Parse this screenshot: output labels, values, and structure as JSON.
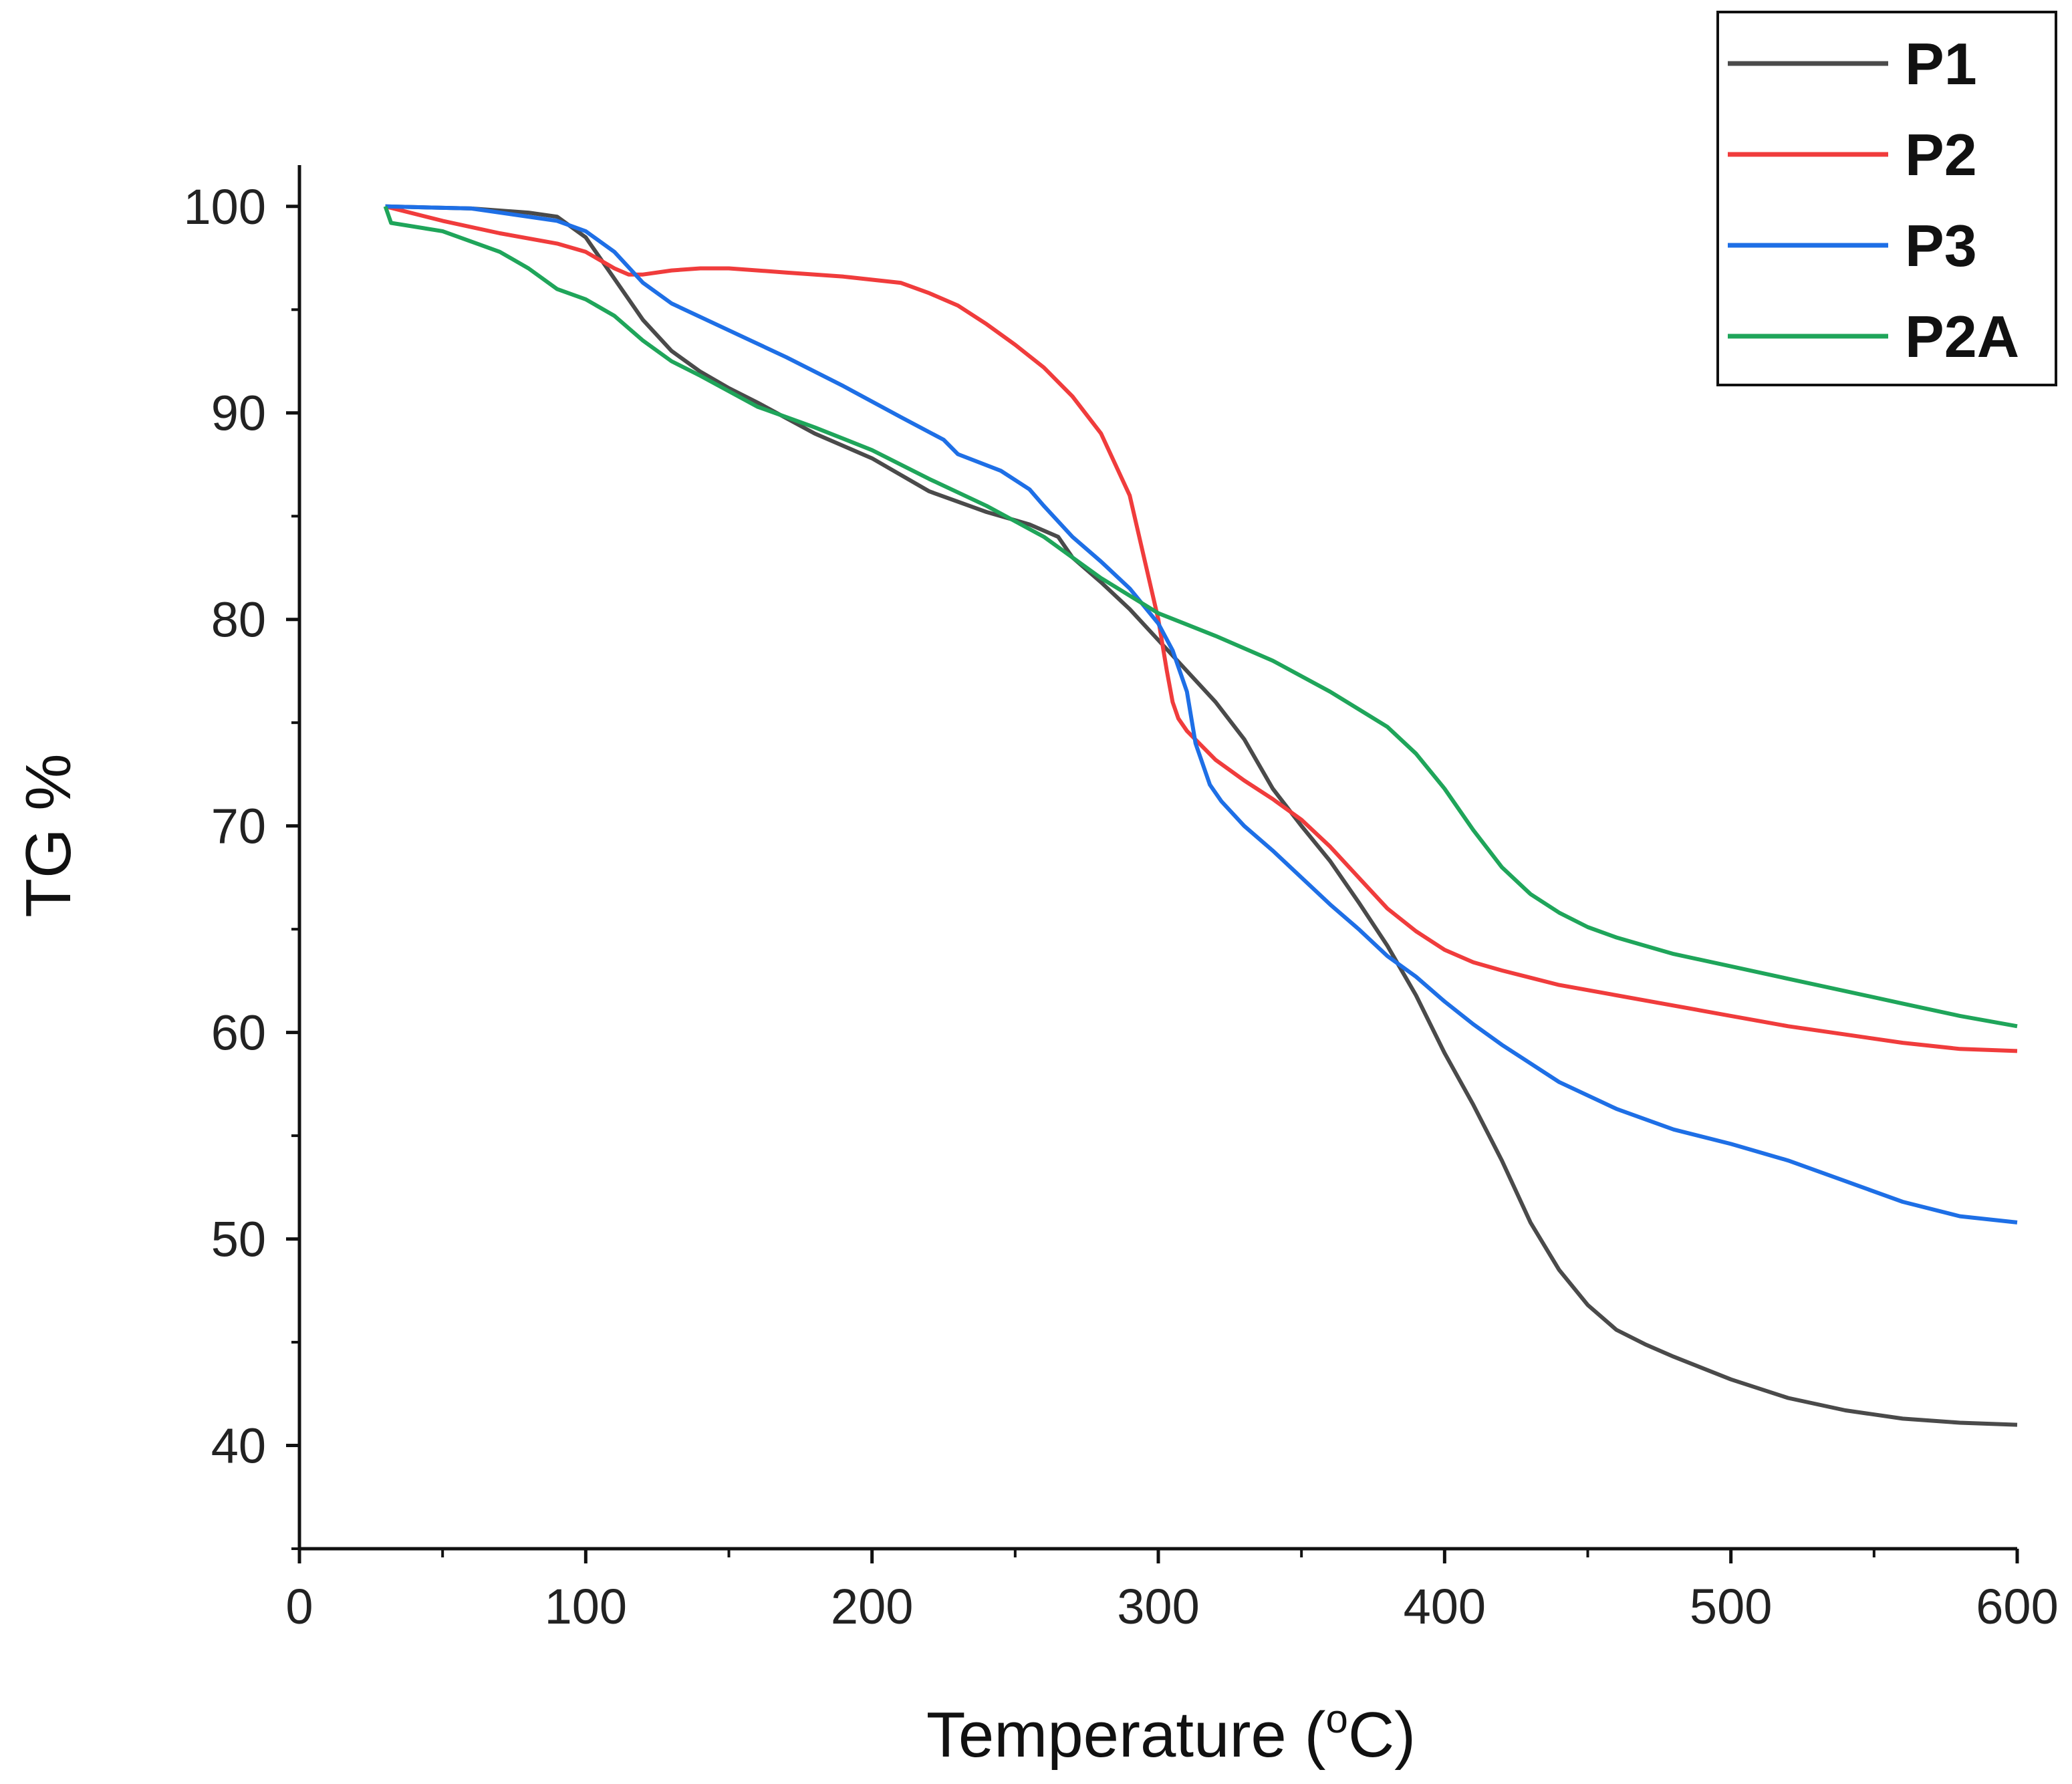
{
  "chart_data": {
    "type": "line",
    "title": "",
    "xlabel": "Temperature (",
    "xlabel_sup": "o",
    "xlabel_tail": "C)",
    "ylabel": "TG %",
    "xlim": [
      0,
      600
    ],
    "ylim": [
      35,
      102
    ],
    "xticks": [
      0,
      100,
      200,
      300,
      400,
      500,
      600
    ],
    "yticks": [
      40,
      50,
      60,
      70,
      80,
      90,
      100
    ],
    "xtick_labels": [
      "0",
      "100",
      "200",
      "300",
      "400",
      "500",
      "600"
    ],
    "ytick_labels": [
      "40",
      "50",
      "60",
      "70",
      "80",
      "90",
      "100"
    ],
    "grid": false,
    "legend_position": "top-right",
    "series": [
      {
        "name": "P1",
        "color": "#4a4a4a",
        "x": [
          30,
          60,
          80,
          90,
          100,
          110,
          120,
          130,
          140,
          150,
          160,
          180,
          200,
          220,
          240,
          255,
          265,
          270,
          280,
          290,
          300,
          310,
          320,
          330,
          340,
          350,
          360,
          370,
          380,
          390,
          400,
          410,
          420,
          430,
          440,
          450,
          460,
          470,
          480,
          500,
          520,
          540,
          560,
          580,
          600
        ],
        "y": [
          100,
          99.9,
          99.7,
          99.5,
          98.5,
          96.5,
          94.5,
          93,
          92,
          91.2,
          90.5,
          89,
          87.8,
          86.2,
          85.2,
          84.6,
          84.0,
          83.0,
          81.8,
          80.5,
          79.0,
          77.5,
          76.0,
          74.2,
          71.8,
          70.0,
          68.3,
          66.3,
          64.2,
          61.8,
          59.0,
          56.5,
          53.8,
          50.8,
          48.5,
          46.8,
          45.6,
          44.9,
          44.3,
          43.2,
          42.3,
          41.7,
          41.3,
          41.1,
          41.0
        ]
      },
      {
        "name": "P2",
        "color": "#f03c3c",
        "x": [
          30,
          50,
          70,
          90,
          100,
          110,
          115,
          120,
          130,
          140,
          150,
          170,
          190,
          210,
          220,
          230,
          240,
          250,
          260,
          270,
          280,
          290,
          295,
          300,
          303,
          305,
          307,
          310,
          320,
          330,
          340,
          350,
          360,
          370,
          380,
          390,
          400,
          410,
          420,
          440,
          460,
          480,
          500,
          520,
          540,
          560,
          580,
          600
        ],
        "y": [
          100,
          99.3,
          98.7,
          98.2,
          97.8,
          97.0,
          96.7,
          96.7,
          96.9,
          97.0,
          97.0,
          96.8,
          96.6,
          96.3,
          95.8,
          95.2,
          94.3,
          93.3,
          92.2,
          90.8,
          89.0,
          86.0,
          83.0,
          80.0,
          77.5,
          76.0,
          75.2,
          74.6,
          73.2,
          72.2,
          71.3,
          70.3,
          69.0,
          67.5,
          66.0,
          64.9,
          64.0,
          63.4,
          63.0,
          62.3,
          61.8,
          61.3,
          60.8,
          60.3,
          59.9,
          59.5,
          59.2,
          59.1
        ]
      },
      {
        "name": "P3",
        "color": "#1e6fe6",
        "x": [
          30,
          60,
          90,
          100,
          110,
          120,
          130,
          150,
          170,
          190,
          210,
          225,
          230,
          245,
          255,
          260,
          270,
          280,
          290,
          300,
          305,
          310,
          313,
          318,
          322,
          330,
          340,
          350,
          360,
          370,
          380,
          390,
          400,
          410,
          420,
          440,
          460,
          480,
          500,
          520,
          540,
          560,
          580,
          600
        ],
        "y": [
          100,
          99.9,
          99.3,
          98.8,
          97.8,
          96.3,
          95.3,
          94.0,
          92.7,
          91.3,
          89.8,
          88.7,
          88.0,
          87.2,
          86.3,
          85.5,
          84.0,
          82.8,
          81.5,
          79.8,
          78.5,
          76.5,
          74.0,
          72.0,
          71.2,
          70.0,
          68.8,
          67.5,
          66.2,
          65.0,
          63.7,
          62.7,
          61.5,
          60.4,
          59.4,
          57.6,
          56.3,
          55.3,
          54.6,
          53.8,
          52.8,
          51.8,
          51.1,
          50.8
        ]
      },
      {
        "name": "P2A",
        "color": "#1fa55a",
        "x": [
          30,
          32,
          50,
          70,
          80,
          90,
          100,
          110,
          120,
          130,
          140,
          160,
          180,
          200,
          220,
          240,
          260,
          280,
          300,
          320,
          340,
          360,
          380,
          390,
          400,
          410,
          420,
          430,
          440,
          450,
          460,
          480,
          500,
          520,
          540,
          560,
          580,
          600
        ],
        "y": [
          100,
          99.2,
          98.8,
          97.8,
          97.0,
          96.0,
          95.5,
          94.7,
          93.5,
          92.5,
          91.8,
          90.3,
          89.3,
          88.2,
          86.8,
          85.5,
          84.0,
          82.0,
          80.3,
          79.2,
          78.0,
          76.5,
          74.8,
          73.5,
          71.8,
          69.8,
          68.0,
          66.7,
          65.8,
          65.1,
          64.6,
          63.8,
          63.2,
          62.6,
          62.0,
          61.4,
          60.8,
          60.3
        ]
      }
    ]
  }
}
